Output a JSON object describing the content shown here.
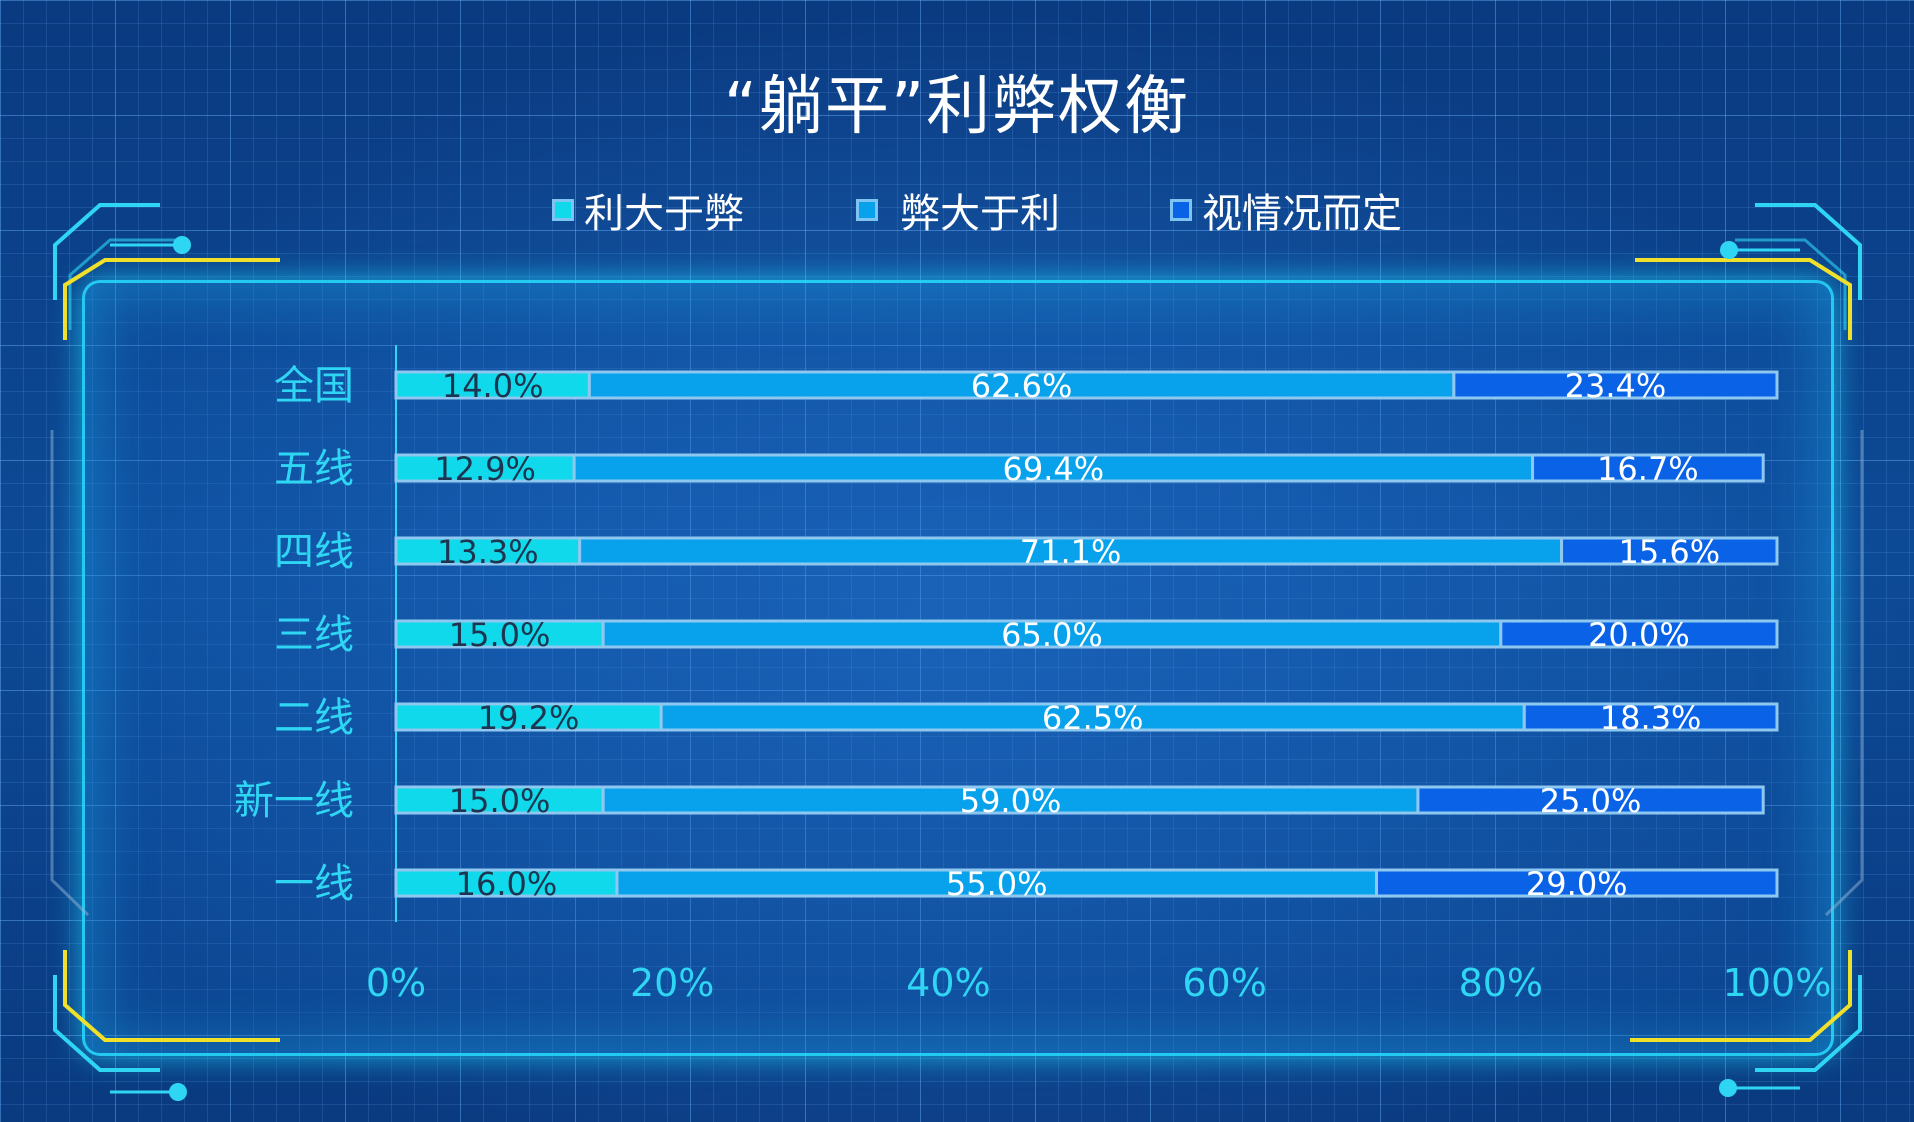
{
  "title": "“躺平”利弊权衡",
  "legend": [
    {
      "label": "利大于弊",
      "color": "#0fd9ea"
    },
    {
      "label": "弊大于利",
      "color": "#08a2ec"
    },
    {
      "label": "视情况而定",
      "color": "#0a63e6"
    }
  ],
  "chart_data": {
    "type": "bar",
    "orientation": "horizontal",
    "stacked": "percent",
    "title": "“躺平”利弊权衡",
    "categories": [
      "全国",
      "五线",
      "四线",
      "三线",
      "二线",
      "新一线",
      "一线"
    ],
    "series": [
      {
        "name": "利大于弊",
        "values": [
          14.0,
          12.9,
          13.3,
          15.0,
          19.2,
          15.0,
          16.0
        ],
        "labels": [
          "14.0%",
          "12.9%",
          "13.3%",
          "15.0%",
          "19.2%",
          "15.0%",
          "16.0%"
        ],
        "color": "#0fd9ea"
      },
      {
        "name": "弊大于利",
        "values": [
          62.6,
          69.4,
          71.1,
          65.0,
          62.5,
          59.0,
          55.0
        ],
        "labels": [
          "62.6%",
          "69.4%",
          "71.1%",
          "65.0%",
          "62.5%",
          "59.0%",
          "55.0%"
        ],
        "color": "#08a2ec"
      },
      {
        "name": "视情况而定",
        "values": [
          23.4,
          16.7,
          15.6,
          20.0,
          18.3,
          25.0,
          29.0
        ],
        "labels": [
          "23.4%",
          "16.7%",
          "15.6%",
          "20.0%",
          "18.3%",
          "25.0%",
          "29.0%"
        ],
        "color": "#0a63e6"
      }
    ],
    "xlim": [
      0,
      100
    ],
    "x_ticks": [
      "0%",
      "20%",
      "40%",
      "60%",
      "80%",
      "100%"
    ],
    "legend_position": "top",
    "grid": false
  }
}
